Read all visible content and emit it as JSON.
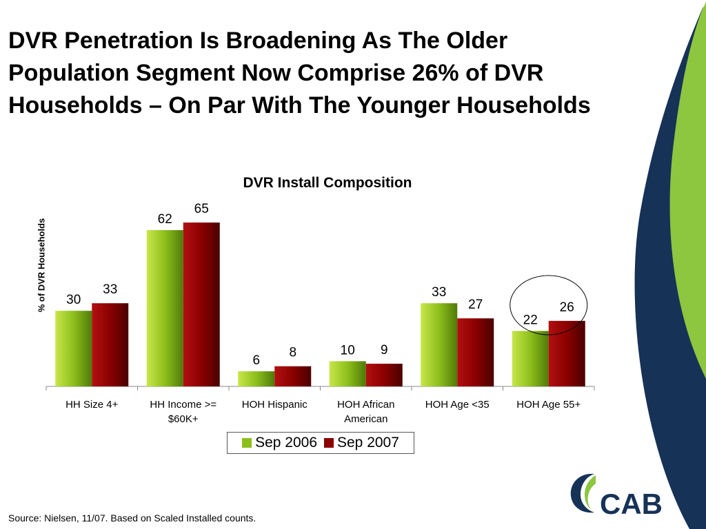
{
  "slide": {
    "title": "DVR Penetration Is Broadening As The Older Population Segment Now Comprise 26% of DVR Households – On Par With The Younger Households",
    "source": "Source: Nielsen,  11/07. Based on Scaled Installed counts.",
    "logo_text": "CAB"
  },
  "colors": {
    "sep2006": "#8dbf1c",
    "sep2007": "#8b0000",
    "deco_navy": "#163257",
    "deco_green": "#8dc63f"
  },
  "chart_data": {
    "type": "bar",
    "title": "DVR Install Composition",
    "xlabel": "",
    "ylabel": "% of DVR Households",
    "categories": [
      "HH Size 4+",
      "HH Income >= $60K+",
      "HOH Hispanic",
      "HOH African American",
      "HOH Age <35",
      "HOH Age 55+"
    ],
    "category_lines": [
      [
        "HH Size 4+"
      ],
      [
        "HH Income >=",
        "$60K+"
      ],
      [
        "HOH Hispanic"
      ],
      [
        "HOH African",
        "American"
      ],
      [
        "HOH Age <35"
      ],
      [
        "HOH Age 55+"
      ]
    ],
    "series": [
      {
        "name": "Sep 2006",
        "values": [
          30,
          62,
          6,
          10,
          33,
          22
        ]
      },
      {
        "name": "Sep 2007",
        "values": [
          33,
          65,
          8,
          9,
          27,
          26
        ]
      }
    ],
    "ylim": [
      0,
      75
    ],
    "grid": false,
    "legend_position": "bottom",
    "highlighted_category": "HOH Age 55+"
  }
}
